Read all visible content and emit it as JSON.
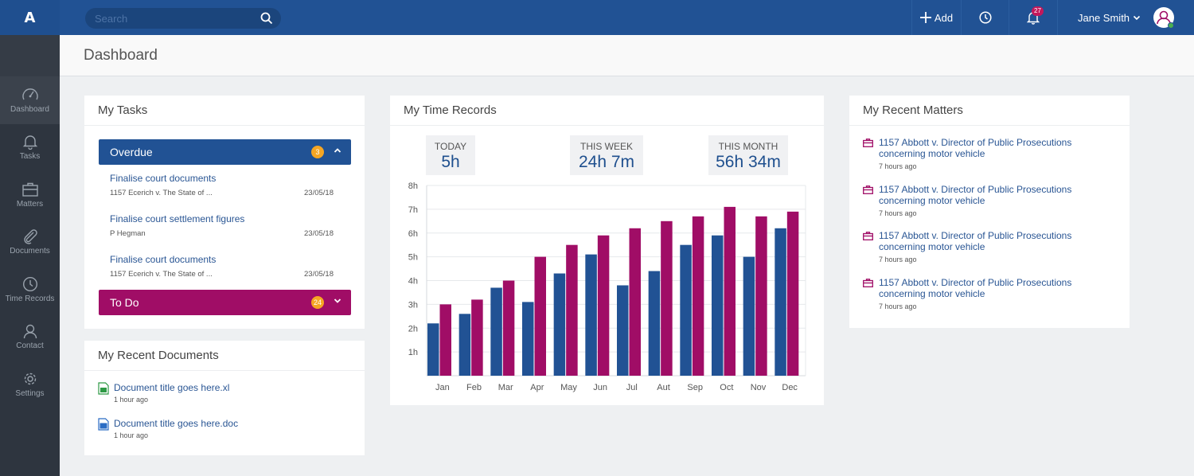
{
  "app": {
    "logo": "A"
  },
  "search": {
    "placeholder": "Search"
  },
  "topbar": {
    "add_label": "Add",
    "notification_count": "27",
    "user_name": "Jane Smith"
  },
  "sidebar": {
    "items": [
      {
        "label": "Dashboard",
        "icon": "gauge-icon",
        "active": true
      },
      {
        "label": "Tasks",
        "icon": "bell-icon"
      },
      {
        "label": "Matters",
        "icon": "briefcase-icon"
      },
      {
        "label": "Documents",
        "icon": "paperclip-icon"
      },
      {
        "label": "Time Records",
        "icon": "clock-icon"
      },
      {
        "label": "Contact",
        "icon": "person-icon"
      },
      {
        "label": "Settings",
        "icon": "gear-icon"
      }
    ]
  },
  "page": {
    "title": "Dashboard"
  },
  "tasks": {
    "title": "My Tasks",
    "overdue": {
      "label": "Overdue",
      "count": "3"
    },
    "items": [
      {
        "title": "Finalise court documents",
        "sub": "1157 Ecerich v. The State of ...",
        "date": "23/05/18"
      },
      {
        "title": "Finalise court settlement figures",
        "sub": "P Hegman",
        "date": "23/05/18"
      },
      {
        "title": "Finalise court documents",
        "sub": "1157 Ecerich v. The State of ...",
        "date": "23/05/18"
      }
    ],
    "todo": {
      "label": "To Do",
      "count": "24"
    }
  },
  "documents": {
    "title": "My Recent Documents",
    "items": [
      {
        "title": "Document title goes here.xl",
        "ago": "1 hour ago",
        "type": "excel"
      },
      {
        "title": "Document title goes here.doc",
        "ago": "1 hour ago",
        "type": "word"
      }
    ]
  },
  "time_records": {
    "title": "My Time Records",
    "stats": [
      {
        "label": "TODAY",
        "value": "5h"
      },
      {
        "label": "THIS WEEK",
        "value": "24h 7m"
      },
      {
        "label": "THIS MONTH",
        "value": "56h 34m"
      }
    ]
  },
  "matters": {
    "title": "My Recent Matters",
    "items": [
      {
        "title_line1": "1157 Abbott v. Director of Public Prosecutions",
        "title_line2": "concerning motor vehicle",
        "ago": "7 hours ago"
      },
      {
        "title_line1": "1157 Abbott v. Director of Public Prosecutions",
        "title_line2": "concerning motor vehicle",
        "ago": "7 hours ago"
      },
      {
        "title_line1": "1157 Abbott v. Director of Public Prosecutions",
        "title_line2": "concerning motor vehicle",
        "ago": "7 hours ago"
      },
      {
        "title_line1": "1157 Abbott v. Director of Public Prosecutions",
        "title_line2": "concerning motor vehicle",
        "ago": "7 hours ago"
      }
    ]
  },
  "colors": {
    "primary": "#215294",
    "accent": "#a00d66",
    "badge": "#f6a623"
  },
  "chart_data": {
    "type": "bar",
    "categories": [
      "Jan",
      "Feb",
      "Mar",
      "Apr",
      "May",
      "Jun",
      "Jul",
      "Aut",
      "Sep",
      "Oct",
      "Nov",
      "Dec"
    ],
    "y_ticks": [
      "1h",
      "2h",
      "3h",
      "4h",
      "5h",
      "6h",
      "7h",
      "8h"
    ],
    "ylim": [
      0,
      8
    ],
    "grid": true,
    "series": [
      {
        "color": "#215294",
        "values": [
          2.2,
          2.6,
          3.7,
          3.1,
          4.3,
          5.1,
          3.8,
          4.4,
          5.5,
          5.9,
          5.0,
          6.2
        ]
      },
      {
        "color": "#a00d66",
        "values": [
          3.0,
          3.2,
          4.0,
          5.0,
          5.5,
          5.9,
          6.2,
          6.5,
          6.7,
          7.1,
          6.7,
          6.9
        ]
      }
    ]
  }
}
